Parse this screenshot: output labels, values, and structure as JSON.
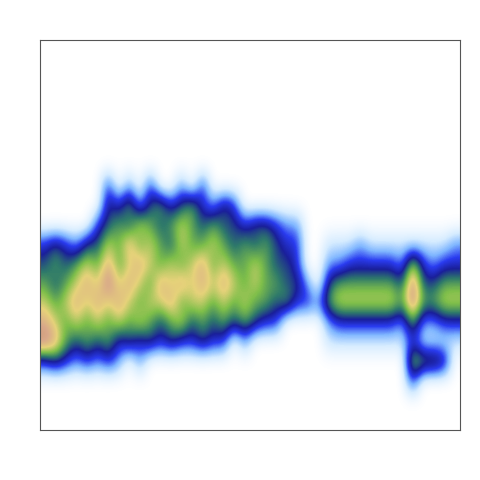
{
  "chart_data": {
    "type": "heatmap",
    "tick_labels": false,
    "grid": false,
    "cells": [
      [
        0,
        0,
        0,
        0,
        0,
        0,
        0,
        0,
        0,
        0,
        0,
        0,
        0,
        0,
        0,
        0,
        0,
        0,
        0,
        0,
        0,
        0,
        0,
        0,
        0,
        0,
        0,
        0,
        0,
        0,
        0,
        0,
        0,
        0,
        0,
        0,
        0,
        0,
        0,
        0
      ],
      [
        0,
        0,
        0,
        0,
        0,
        0,
        0,
        0,
        0,
        0,
        0,
        0,
        0,
        0,
        0,
        0,
        0,
        0,
        0,
        0,
        0,
        0,
        0,
        0,
        0,
        0,
        0,
        0,
        0,
        0,
        0,
        0,
        0,
        0,
        0,
        0,
        0,
        0,
        0,
        0
      ],
      [
        0,
        0,
        0,
        0,
        0,
        0,
        0,
        0,
        0,
        0,
        0,
        0,
        0,
        0,
        0,
        0,
        0,
        0,
        0,
        0,
        0,
        0,
        0,
        0,
        0,
        0,
        0,
        0,
        0,
        0,
        0,
        0,
        0,
        0,
        0,
        0,
        0,
        0,
        0,
        0
      ],
      [
        0,
        0,
        0,
        0,
        0,
        0,
        0,
        0,
        0,
        0,
        0,
        0,
        0,
        0,
        0,
        0,
        0,
        0,
        0,
        0,
        0,
        0,
        0,
        0,
        0,
        0,
        0,
        0,
        0,
        0,
        0,
        0,
        0,
        0,
        0,
        0,
        0,
        0,
        0,
        0
      ],
      [
        0,
        0,
        0,
        0,
        0,
        0,
        0,
        0,
        0,
        0,
        0,
        0,
        0,
        0,
        0,
        0,
        0,
        0,
        0,
        0,
        0,
        0,
        0,
        0,
        0,
        0,
        0,
        0,
        0,
        0,
        0,
        0,
        0,
        0,
        0,
        0,
        0,
        0,
        0,
        0
      ],
      [
        0,
        0,
        0,
        0,
        0,
        0,
        0,
        0,
        0,
        0,
        0,
        0,
        0,
        0,
        0,
        0,
        0,
        0,
        0,
        0,
        0,
        0,
        0,
        0,
        0,
        0,
        0,
        0,
        0,
        0,
        0,
        0,
        0,
        0,
        0,
        0,
        0,
        0,
        0,
        0
      ],
      [
        0,
        0,
        0,
        0,
        0,
        0,
        0,
        0,
        0,
        0,
        0,
        0,
        0,
        0,
        0,
        0,
        0,
        0,
        0,
        0,
        0,
        0,
        0,
        0,
        0,
        0,
        0,
        0,
        0,
        0,
        0,
        0,
        0,
        0,
        0,
        0,
        0,
        0,
        0,
        0
      ],
      [
        0,
        0,
        0,
        0,
        0,
        0,
        3,
        0,
        2,
        0,
        3,
        0,
        0,
        2,
        0,
        3,
        0,
        0,
        0,
        0,
        0,
        0,
        0,
        0,
        0,
        0,
        0,
        0,
        0,
        0,
        0,
        0,
        0,
        0,
        0,
        0,
        0,
        0,
        0,
        0
      ],
      [
        0,
        0,
        0,
        0,
        0,
        0,
        4,
        3,
        5,
        2,
        4,
        5,
        3,
        4,
        5,
        3,
        2,
        4,
        3,
        0,
        0,
        0,
        0,
        0,
        0,
        0,
        0,
        0,
        0,
        0,
        0,
        0,
        0,
        0,
        0,
        0,
        0,
        0,
        0,
        0
      ],
      [
        0,
        0,
        0,
        0,
        0,
        3,
        4,
        5,
        4,
        6,
        5,
        4,
        5,
        6,
        5,
        4,
        5,
        4,
        4,
        3,
        4,
        4,
        3,
        2,
        2,
        0,
        0,
        0,
        0,
        0,
        0,
        0,
        0,
        0,
        0,
        0,
        0,
        0,
        0,
        0
      ],
      [
        3,
        4,
        3,
        2,
        4,
        4,
        6,
        5,
        7,
        5,
        6,
        5,
        4,
        6,
        5,
        5,
        6,
        5,
        4,
        5,
        4,
        5,
        4,
        3,
        3,
        0,
        0,
        1,
        1,
        1,
        2,
        1,
        1,
        1,
        1,
        1,
        1,
        1,
        1,
        2
      ],
      [
        4,
        5,
        4,
        5,
        6,
        5,
        7,
        5,
        6,
        7,
        6,
        5,
        6,
        5,
        6,
        7,
        5,
        6,
        5,
        5,
        6,
        5,
        4,
        4,
        3,
        0,
        0,
        2,
        2,
        3,
        3,
        3,
        3,
        3,
        2,
        6,
        3,
        2,
        3,
        3
      ],
      [
        5,
        4,
        5,
        6,
        7,
        6,
        8,
        6,
        7,
        6,
        5,
        7,
        6,
        7,
        6,
        7,
        6,
        7,
        6,
        5,
        6,
        5,
        5,
        4,
        4,
        2,
        0,
        4,
        5,
        5,
        5,
        5,
        5,
        5,
        4,
        8,
        4,
        4,
        5,
        5
      ],
      [
        6,
        5,
        6,
        7,
        6,
        7,
        6,
        7,
        6,
        5,
        6,
        6,
        7,
        5,
        6,
        6,
        5,
        6,
        5,
        6,
        5,
        5,
        4,
        5,
        3,
        3,
        2,
        5,
        6,
        6,
        6,
        6,
        6,
        6,
        5,
        8,
        5,
        5,
        6,
        6
      ],
      [
        7,
        6,
        5,
        6,
        5,
        6,
        5,
        6,
        5,
        6,
        5,
        4,
        5,
        6,
        4,
        5,
        4,
        5,
        4,
        5,
        4,
        3,
        3,
        0,
        0,
        0,
        0,
        2,
        3,
        3,
        3,
        3,
        3,
        3,
        2,
        5,
        2,
        2,
        3,
        3
      ],
      [
        8,
        7,
        5,
        4,
        5,
        4,
        5,
        3,
        4,
        3,
        4,
        3,
        4,
        3,
        3,
        4,
        3,
        3,
        0,
        2,
        0,
        0,
        0,
        0,
        0,
        0,
        0,
        1,
        1,
        1,
        1,
        1,
        1,
        1,
        1,
        3,
        1,
        1,
        1,
        1
      ],
      [
        3,
        4,
        3,
        2,
        3,
        2,
        3,
        2,
        0,
        2,
        0,
        0,
        0,
        0,
        0,
        0,
        0,
        0,
        0,
        0,
        0,
        0,
        0,
        0,
        0,
        0,
        0,
        0,
        0,
        0,
        0,
        0,
        0,
        0,
        0,
        6,
        5,
        5,
        4,
        0
      ],
      [
        0,
        0,
        0,
        0,
        0,
        0,
        0,
        0,
        0,
        0,
        0,
        0,
        0,
        0,
        0,
        0,
        0,
        0,
        0,
        0,
        0,
        0,
        0,
        0,
        0,
        0,
        0,
        0,
        0,
        0,
        0,
        0,
        0,
        0,
        0,
        3,
        0,
        0,
        0,
        0
      ],
      [
        0,
        0,
        0,
        0,
        0,
        0,
        0,
        0,
        0,
        0,
        0,
        0,
        0,
        0,
        0,
        0,
        0,
        0,
        0,
        0,
        0,
        0,
        0,
        0,
        0,
        0,
        0,
        0,
        0,
        0,
        0,
        0,
        0,
        0,
        0,
        0,
        0,
        0,
        0,
        0
      ],
      [
        0,
        0,
        0,
        0,
        0,
        0,
        0,
        0,
        0,
        0,
        0,
        0,
        0,
        0,
        0,
        0,
        0,
        0,
        0,
        0,
        0,
        0,
        0,
        0,
        0,
        0,
        0,
        0,
        0,
        0,
        0,
        0,
        0,
        0,
        0,
        0,
        0,
        0,
        0,
        0
      ]
    ]
  }
}
